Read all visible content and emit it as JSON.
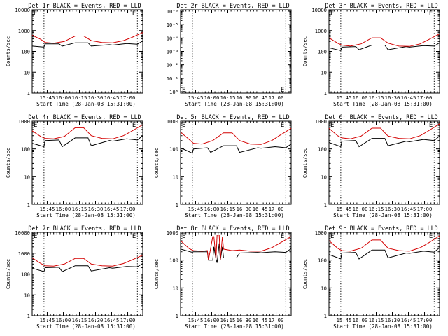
{
  "colors": {
    "events": "#000000",
    "lld": "#d40000",
    "axes": "#000000",
    "markers": "#000000"
  },
  "chart_data": [
    {
      "type": "line",
      "title": "Det 1r BLACK = Events, RED = LLD",
      "xlabel": "Start Time (28-Jan-08 15:31:00)",
      "ylabel": "Counts/sec",
      "xticks": [
        "15:45",
        "16:00",
        "16:15",
        "16:30",
        "16:45",
        "17:00"
      ],
      "yticks": [
        "1",
        "10",
        "100",
        "1000",
        "10000"
      ],
      "ylog": true,
      "ylim": [
        1,
        10000
      ],
      "xlim_minutes": [
        0,
        103
      ],
      "markers_at_minutes": [
        11,
        98
      ],
      "corner_labels": [
        "E",
        "E"
      ],
      "series": [
        {
          "name": "Events",
          "x": [
            0,
            11,
            12,
            25,
            28,
            40,
            52,
            55,
            72,
            75,
            88,
            98,
            103
          ],
          "values": [
            180,
            160,
            230,
            230,
            180,
            260,
            260,
            180,
            210,
            200,
            240,
            220,
            320
          ]
        },
        {
          "name": "LLD",
          "x": [
            0,
            8,
            12,
            20,
            30,
            40,
            48,
            55,
            65,
            75,
            85,
            92,
            103
          ],
          "values": [
            600,
            380,
            270,
            250,
            300,
            550,
            550,
            330,
            270,
            260,
            330,
            450,
            800
          ]
        }
      ]
    },
    {
      "type": "line",
      "title": "Det 2r BLACK = Events, RED = LLD",
      "xlabel": "Start Time (28-Jan-08 15:31:00)",
      "ylabel": "",
      "xticks": [
        "15:45",
        "16:00",
        "16:15",
        "16:30",
        "16:45",
        "17:00"
      ],
      "yticks": [
        "10⁰",
        "10⁻¹",
        "10⁻²",
        "10⁻³",
        "10⁻⁴",
        "10⁻⁵",
        "10⁻⁶"
      ],
      "ylog": true,
      "xlim_minutes": [
        0,
        103
      ],
      "markers_at_minutes": [
        11,
        98
      ],
      "corner_labels": [
        "E",
        "E"
      ],
      "series": []
    },
    {
      "type": "line",
      "title": "Det 3r BLACK = Events, RED = LLD",
      "xlabel": "Start Time (28-Jan-08 15:31:00)",
      "ylabel": "Counts/sec",
      "xticks": [
        "15:45",
        "16:00",
        "16:15",
        "16:30",
        "16:45",
        "17:00"
      ],
      "yticks": [
        "1",
        "10",
        "100",
        "1000",
        "10000"
      ],
      "ylog": true,
      "ylim": [
        1,
        10000
      ],
      "xlim_minutes": [
        0,
        103
      ],
      "markers_at_minutes": [
        11,
        98
      ],
      "corner_labels": [
        "E",
        "E"
      ],
      "series": [
        {
          "name": "Events",
          "x": [
            0,
            11,
            12,
            25,
            28,
            40,
            52,
            55,
            72,
            75,
            88,
            98,
            103
          ],
          "values": [
            150,
            110,
            160,
            170,
            120,
            200,
            200,
            120,
            170,
            160,
            190,
            180,
            260
          ]
        },
        {
          "name": "LLD",
          "x": [
            0,
            8,
            12,
            20,
            30,
            40,
            48,
            55,
            65,
            75,
            85,
            92,
            103
          ],
          "values": [
            450,
            250,
            200,
            180,
            230,
            450,
            450,
            250,
            180,
            175,
            230,
            350,
            700
          ]
        }
      ]
    },
    {
      "type": "line",
      "title": "Det 4r BLACK = Events, RED = LLD",
      "xlabel": "Start Time (28-Jan-08 15:31:00)",
      "ylabel": "Counts/sec",
      "xticks": [
        "15:45",
        "16:00",
        "16:15",
        "16:30",
        "16:45",
        "17:00"
      ],
      "yticks": [
        "1",
        "10",
        "100",
        "1000"
      ],
      "ylog": true,
      "ylim": [
        1,
        1000
      ],
      "xlim_minutes": [
        0,
        103
      ],
      "markers_at_minutes": [
        11,
        98
      ],
      "corner_labels": [
        "E",
        "E"
      ],
      "series": [
        {
          "name": "Events",
          "x": [
            0,
            11,
            12,
            25,
            28,
            40,
            52,
            55,
            72,
            75,
            88,
            98,
            103
          ],
          "values": [
            160,
            120,
            200,
            210,
            120,
            250,
            250,
            130,
            200,
            190,
            230,
            210,
            300
          ]
        },
        {
          "name": "LLD",
          "x": [
            0,
            8,
            12,
            20,
            30,
            40,
            48,
            55,
            65,
            75,
            85,
            92,
            103
          ],
          "values": [
            450,
            280,
            240,
            230,
            280,
            580,
            580,
            300,
            240,
            230,
            300,
            420,
            750
          ]
        }
      ]
    },
    {
      "type": "line",
      "title": "Det 5r BLACK = Events, RED = LLD",
      "xlabel": "Start Time (28-Jan-08 15:31:00)",
      "ylabel": "Counts/sec",
      "xticks": [
        "15:45",
        "16:00",
        "16:15",
        "16:30",
        "16:45",
        "17:00"
      ],
      "yticks": [
        "1",
        "10",
        "100",
        "1000"
      ],
      "ylog": true,
      "ylim": [
        1,
        1000
      ],
      "xlim_minutes": [
        0,
        103
      ],
      "markers_at_minutes": [
        11,
        98
      ],
      "corner_labels": [
        "E",
        "E"
      ],
      "series": [
        {
          "name": "Events",
          "x": [
            0,
            11,
            12,
            25,
            28,
            40,
            52,
            55,
            72,
            75,
            88,
            98,
            103
          ],
          "values": [
            110,
            70,
            100,
            110,
            75,
            130,
            130,
            75,
            110,
            105,
            120,
            110,
            150
          ]
        },
        {
          "name": "LLD",
          "x": [
            0,
            8,
            12,
            20,
            30,
            40,
            48,
            55,
            65,
            75,
            85,
            92,
            103
          ],
          "values": [
            400,
            220,
            160,
            150,
            200,
            380,
            380,
            200,
            150,
            145,
            200,
            300,
            550
          ]
        }
      ]
    },
    {
      "type": "line",
      "title": "Det 6r BLACK = Events, RED = LLD",
      "xlabel": "Start Time (28-Jan-08 15:31:00)",
      "ylabel": "Counts/sec",
      "xticks": [
        "15:45",
        "16:00",
        "16:15",
        "16:30",
        "16:45",
        "17:00"
      ],
      "yticks": [
        "1",
        "10",
        "100",
        "1000"
      ],
      "ylog": true,
      "ylim": [
        1,
        1000
      ],
      "xlim_minutes": [
        0,
        103
      ],
      "markers_at_minutes": [
        11,
        98
      ],
      "corner_labels": [
        "E",
        "E"
      ],
      "series": [
        {
          "name": "Events",
          "x": [
            0,
            11,
            12,
            25,
            28,
            40,
            52,
            55,
            72,
            75,
            88,
            98,
            103
          ],
          "values": [
            170,
            120,
            190,
            200,
            120,
            240,
            240,
            130,
            190,
            180,
            220,
            200,
            290
          ]
        },
        {
          "name": "LLD",
          "x": [
            0,
            8,
            12,
            20,
            30,
            40,
            48,
            55,
            65,
            75,
            85,
            92,
            103
          ],
          "values": [
            550,
            300,
            250,
            230,
            290,
            560,
            560,
            290,
            240,
            230,
            300,
            430,
            800
          ]
        }
      ]
    },
    {
      "type": "line",
      "title": "Det 7r BLACK = Events, RED = LLD",
      "xlabel": "Start Time (28-Jan-08 15:31:00)",
      "ylabel": "Counts/sec",
      "xticks": [
        "15:45",
        "16:00",
        "16:15",
        "16:30",
        "16:45",
        "17:00"
      ],
      "yticks": [
        "1",
        "10",
        "100",
        "1000",
        "10000"
      ],
      "ylog": true,
      "ylim": [
        1,
        10000
      ],
      "xlim_minutes": [
        0,
        103
      ],
      "markers_at_minutes": [
        11,
        98
      ],
      "corner_labels": [
        "E",
        "E"
      ],
      "series": [
        {
          "name": "Events",
          "x": [
            0,
            11,
            12,
            25,
            28,
            40,
            52,
            55,
            72,
            75,
            88,
            98,
            103
          ],
          "values": [
            190,
            130,
            200,
            210,
            130,
            250,
            250,
            140,
            200,
            190,
            230,
            220,
            320
          ]
        },
        {
          "name": "LLD",
          "x": [
            0,
            8,
            12,
            20,
            30,
            40,
            48,
            55,
            65,
            75,
            85,
            92,
            103
          ],
          "values": [
            600,
            320,
            250,
            240,
            300,
            560,
            560,
            300,
            250,
            240,
            320,
            450,
            800
          ]
        }
      ]
    },
    {
      "type": "line",
      "title": "Det 8r BLACK = Events, RED = LLD",
      "xlabel": "Start Time (28-Jan-08 15:31:00)",
      "ylabel": "Counts/sec",
      "xticks": [
        "15:45",
        "16:00",
        "16:15",
        "16:30",
        "16:45",
        "17:00"
      ],
      "yticks": [
        "1",
        "10",
        "100",
        "1000"
      ],
      "ylog": true,
      "ylim": [
        1,
        1000
      ],
      "xlim_minutes": [
        0,
        103
      ],
      "markers_at_minutes": [
        11,
        98
      ],
      "corner_labels": [
        "E",
        "E"
      ],
      "series": [
        {
          "name": "Events",
          "x": [
            0,
            11,
            12,
            25,
            26,
            30,
            31,
            33,
            34,
            36,
            37,
            39,
            40,
            52,
            55,
            72,
            75,
            88,
            98,
            103
          ],
          "values": [
            250,
            190,
            200,
            200,
            100,
            100,
            300,
            110,
            80,
            400,
            100,
            300,
            120,
            120,
            180,
            190,
            185,
            200,
            190,
            260
          ]
        },
        {
          "name": "LLD",
          "x": [
            0,
            8,
            12,
            20,
            25,
            26,
            30,
            31,
            33,
            34,
            36,
            37,
            39,
            40,
            48,
            55,
            65,
            75,
            85,
            92,
            103
          ],
          "values": [
            500,
            260,
            220,
            210,
            220,
            100,
            700,
            700,
            110,
            800,
            800,
            100,
            700,
            250,
            220,
            230,
            210,
            210,
            280,
            400,
            700
          ]
        }
      ]
    },
    {
      "type": "line",
      "title": "Det 9r BLACK = Events, RED = LLD",
      "xlabel": "Start Time (28-Jan-08 15:31:00)",
      "ylabel": "Counts/sec",
      "xticks": [
        "15:45",
        "16:00",
        "16:15",
        "16:30",
        "16:45",
        "17:00"
      ],
      "yticks": [
        "1",
        "10",
        "100",
        "1000"
      ],
      "ylog": true,
      "ylim": [
        1,
        1000
      ],
      "xlim_minutes": [
        0,
        103
      ],
      "markers_at_minutes": [
        11,
        98
      ],
      "corner_labels": [
        "E",
        "E"
      ],
      "series": [
        {
          "name": "Events",
          "x": [
            0,
            11,
            12,
            25,
            28,
            40,
            52,
            55,
            72,
            75,
            88,
            98,
            103
          ],
          "values": [
            160,
            110,
            180,
            190,
            110,
            230,
            230,
            120,
            180,
            175,
            210,
            195,
            280
          ]
        },
        {
          "name": "LLD",
          "x": [
            0,
            8,
            12,
            20,
            30,
            40,
            48,
            55,
            65,
            75,
            85,
            92,
            103
          ],
          "values": [
            500,
            270,
            220,
            210,
            270,
            530,
            530,
            270,
            220,
            210,
            280,
            400,
            750
          ]
        }
      ]
    }
  ]
}
